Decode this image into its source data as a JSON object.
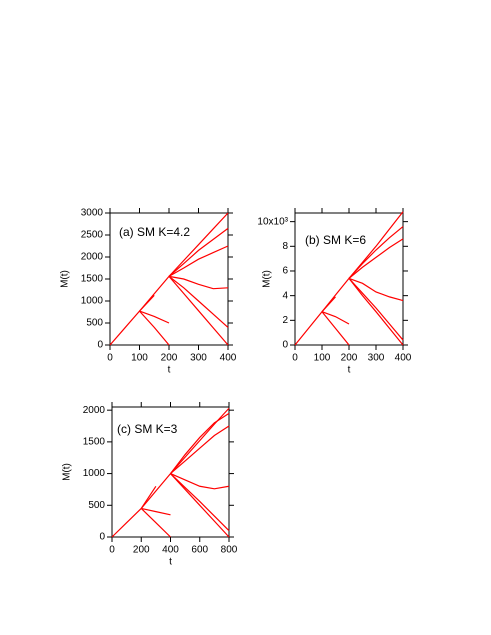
{
  "chart_data": [
    {
      "type": "line",
      "title": "(a) SM K=4.2",
      "xlabel": "t",
      "ylabel": "M(t)",
      "color": "#ff0000",
      "x": [
        0,
        50,
        100,
        150,
        200,
        250,
        300,
        350,
        400
      ],
      "xlim": [
        0,
        400
      ],
      "xticks": [
        0,
        100,
        200,
        300,
        400
      ],
      "ylim": [
        0,
        3000
      ],
      "yticks": [
        0,
        500,
        1000,
        1500,
        2000,
        2500,
        3000
      ],
      "series": [
        {
          "values": [
            0,
            385,
            770,
            1165,
            1560,
            1920,
            2280,
            2640,
            3000
          ]
        },
        {
          "values": [
            null,
            null,
            770,
            1130,
            null,
            null,
            null,
            null,
            null
          ]
        },
        {
          "values": [
            null,
            null,
            770,
            650,
            500,
            null,
            null,
            null,
            null
          ]
        },
        {
          "values": [
            null,
            null,
            770,
            400,
            0,
            null,
            null,
            null,
            null
          ]
        },
        {
          "values": [
            null,
            null,
            null,
            null,
            1560,
            1850,
            2150,
            2400,
            2650
          ]
        },
        {
          "values": [
            null,
            null,
            null,
            null,
            1560,
            1750,
            1950,
            2100,
            2250
          ]
        },
        {
          "values": [
            null,
            null,
            null,
            null,
            1560,
            1500,
            1380,
            1280,
            1300
          ]
        },
        {
          "values": [
            null,
            null,
            null,
            null,
            1560,
            1300,
            1000,
            700,
            400
          ]
        },
        {
          "values": [
            null,
            null,
            null,
            null,
            1560,
            1170,
            780,
            390,
            0
          ]
        }
      ]
    },
    {
      "type": "line",
      "title": "(b) SM K=6",
      "xlabel": "t",
      "ylabel": "M(t)",
      "color": "#ff0000",
      "x": [
        0,
        50,
        100,
        150,
        200,
        250,
        300,
        350,
        400
      ],
      "xlim": [
        0,
        400
      ],
      "xticks": [
        0,
        100,
        200,
        300,
        400
      ],
      "ylim": [
        0,
        10700
      ],
      "yticks": [
        0,
        {
          "value": 2000,
          "label": "2"
        },
        {
          "value": 4000,
          "label": "4"
        },
        {
          "value": 6000,
          "label": "6"
        },
        {
          "value": 8000,
          "label": "8"
        },
        {
          "value": 10000,
          "label": "10x10³"
        }
      ],
      "series": [
        {
          "values": [
            0,
            1350,
            2700,
            4050,
            5400,
            6700,
            8000,
            9400,
            10800
          ]
        },
        {
          "values": [
            null,
            null,
            2700,
            3900,
            null,
            null,
            null,
            null,
            null
          ]
        },
        {
          "values": [
            null,
            null,
            2700,
            2300,
            1700,
            null,
            null,
            null,
            null
          ]
        },
        {
          "values": [
            null,
            null,
            2700,
            1350,
            0,
            null,
            null,
            null,
            null
          ]
        },
        {
          "values": [
            null,
            null,
            null,
            null,
            5400,
            6600,
            7700,
            8700,
            9600
          ]
        },
        {
          "values": [
            null,
            null,
            null,
            null,
            5400,
            6300,
            7100,
            7900,
            8600
          ]
        },
        {
          "values": [
            null,
            null,
            null,
            null,
            5400,
            5000,
            4300,
            3900,
            3600
          ]
        },
        {
          "values": [
            null,
            null,
            null,
            null,
            5400,
            4200,
            3000,
            1700,
            400
          ]
        },
        {
          "values": [
            null,
            null,
            null,
            null,
            5400,
            4000,
            2700,
            1350,
            0
          ]
        }
      ]
    },
    {
      "type": "line",
      "title": "(c) SM K=3",
      "xlabel": "t",
      "ylabel": "M(t)",
      "color": "#ff0000",
      "x": [
        0,
        100,
        200,
        300,
        400,
        500,
        600,
        700,
        800
      ],
      "xlim": [
        0,
        800
      ],
      "xticks": [
        0,
        200,
        400,
        600,
        800
      ],
      "ylim": [
        0,
        2050
      ],
      "yticks": [
        0,
        500,
        1000,
        1500,
        2000
      ],
      "series": [
        {
          "values": [
            0,
            225,
            450,
            725,
            1000,
            1260,
            1520,
            1780,
            2030
          ]
        },
        {
          "values": [
            null,
            null,
            450,
            800,
            null,
            null,
            null,
            null,
            null
          ]
        },
        {
          "values": [
            null,
            null,
            450,
            400,
            350,
            null,
            null,
            null,
            null
          ]
        },
        {
          "values": [
            null,
            null,
            450,
            225,
            0,
            null,
            null,
            null,
            null
          ]
        },
        {
          "values": [
            null,
            null,
            null,
            null,
            1000,
            1300,
            1570,
            1800,
            1950
          ]
        },
        {
          "values": [
            null,
            null,
            null,
            null,
            1000,
            1200,
            1400,
            1600,
            1750
          ]
        },
        {
          "values": [
            null,
            null,
            null,
            null,
            1000,
            900,
            800,
            760,
            800
          ]
        },
        {
          "values": [
            null,
            null,
            null,
            null,
            1000,
            780,
            560,
            330,
            100
          ]
        },
        {
          "values": [
            null,
            null,
            null,
            null,
            1000,
            750,
            500,
            250,
            0
          ]
        }
      ]
    }
  ]
}
